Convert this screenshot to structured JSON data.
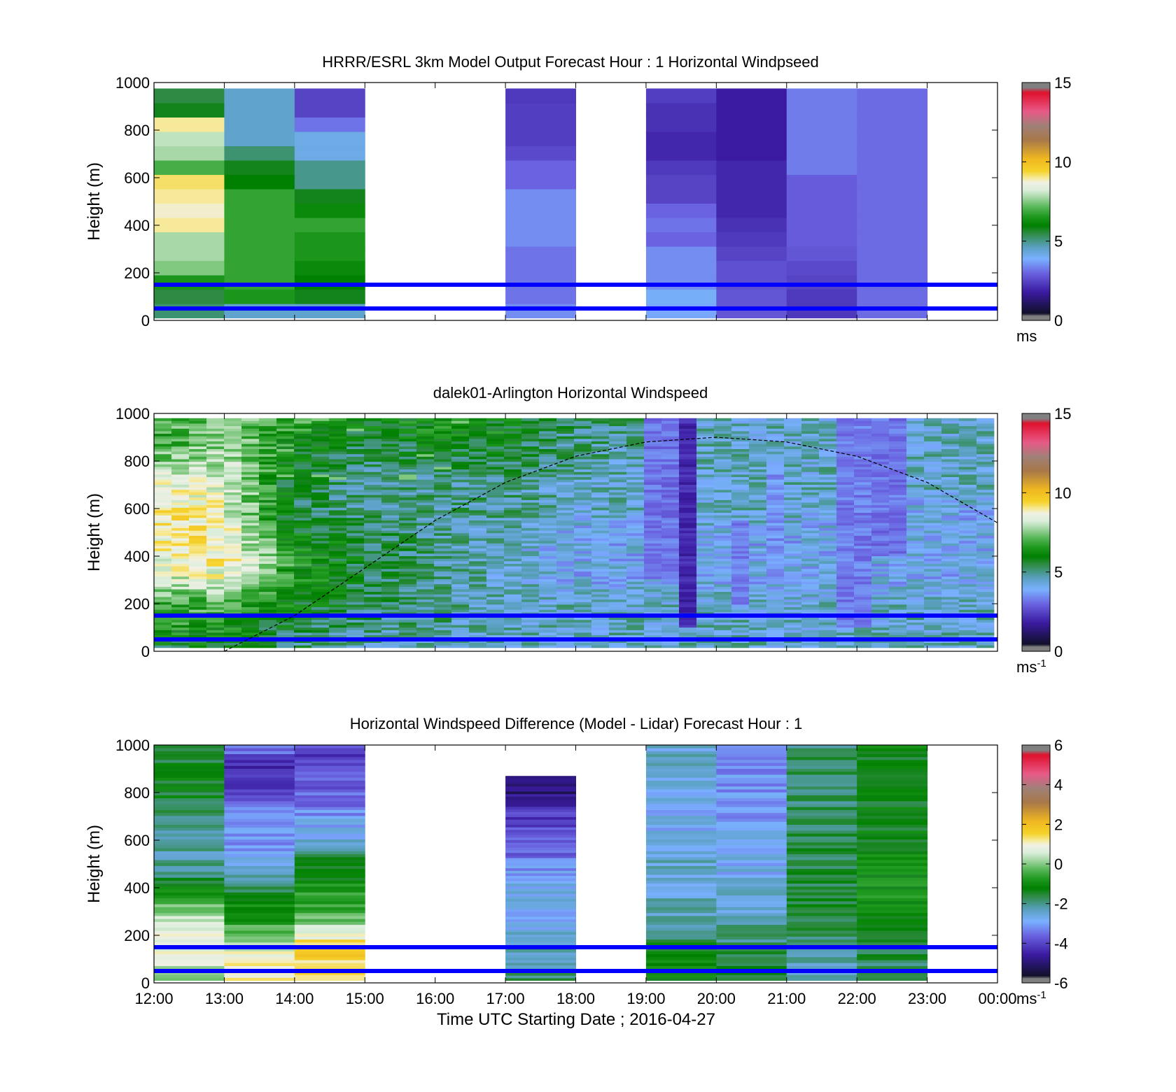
{
  "chart_data": [
    {
      "type": "heatmap",
      "title": "HRRR/ESRL 3km Model Output   Forecast Hour : 1 Horizontal Windpseed",
      "xlabel": "",
      "ylabel": "Height (m)",
      "ylim": [
        0,
        1000
      ],
      "yticks": [
        "0",
        "200",
        "400",
        "600",
        "800",
        "1000"
      ],
      "x_hours": [
        12,
        13,
        14,
        15,
        16,
        17,
        18,
        19,
        20,
        21,
        22,
        23,
        24
      ],
      "xticks_shown": false,
      "colorbar": {
        "ticks": [
          "0",
          "5",
          "10",
          "15"
        ],
        "min": 0,
        "max": 15,
        "unit": "ms"
      },
      "reference_lines_m": [
        50,
        150
      ],
      "column_hours": [
        12,
        13,
        14,
        15,
        16,
        17,
        18,
        19,
        20,
        21,
        22,
        23
      ],
      "column_values_ms": [
        [
          5.2,
          5.5,
          6.5,
          7.5,
          7.8,
          7.8,
          9.0,
          8.8,
          9.0,
          9.2,
          7.0,
          7.8,
          8.0,
          9.0,
          5.8,
          5.5
        ],
        [
          4.5,
          6.5,
          6.8,
          6.8,
          6.8,
          6.8,
          6.8,
          6.8,
          6.8,
          6.0,
          5.8,
          5.2,
          4.5,
          4.5,
          4.5,
          4.5
        ],
        [
          4.5,
          5.8,
          6.0,
          6.2,
          6.5,
          6.5,
          6.8,
          6.2,
          5.8,
          5.0,
          5.0,
          4.2,
          4.2,
          3.2,
          2.5,
          2.5
        ],
        null,
        null,
        [
          3.5,
          3.2,
          3.2,
          3.2,
          3.2,
          3.5,
          3.5,
          3.5,
          3.5,
          3.0,
          3.0,
          2.6,
          2.4,
          2.4,
          2.4,
          2.3
        ],
        null,
        [
          3.8,
          4.0,
          3.5,
          3.5,
          3.5,
          3.0,
          3.2,
          3.0,
          2.5,
          2.5,
          2.3,
          2.0,
          2.0,
          2.2,
          2.2,
          2.4
        ],
        [
          2.8,
          2.8,
          2.7,
          2.7,
          2.5,
          2.3,
          2.2,
          2.0,
          2.0,
          2.0,
          2.0,
          1.8,
          1.8,
          1.8,
          1.8,
          1.8
        ],
        [
          2.3,
          2.3,
          2.5,
          2.6,
          2.8,
          2.9,
          2.9,
          2.9,
          2.9,
          2.9,
          3.3,
          3.3,
          3.3,
          3.3,
          3.3,
          3.3
        ],
        [
          3.1,
          3.1,
          3.1,
          3.1,
          3.1,
          3.1,
          3.1,
          3.1,
          3.1,
          3.1,
          3.1,
          3.1,
          3.1,
          3.1,
          3.1,
          3.1
        ],
        null
      ]
    },
    {
      "type": "heatmap",
      "title": "dalek01-Arlington  Horizontal Windspeed",
      "xlabel": "",
      "ylabel": "Height (m)",
      "ylim": [
        0,
        1000
      ],
      "yticks": [
        "0",
        "200",
        "400",
        "600",
        "800",
        "1000"
      ],
      "x_hours": [
        12,
        13,
        14,
        15,
        16,
        17,
        18,
        19,
        20,
        21,
        22,
        23,
        24
      ],
      "xticks_shown": false,
      "colorbar": {
        "ticks": [
          "0",
          "5",
          "10",
          "15"
        ],
        "min": 0,
        "max": 15,
        "unit": "ms",
        "unit_exp": "-1"
      },
      "reference_lines_m": [
        50,
        150
      ],
      "data_range_hours": [
        12,
        23.95
      ],
      "columns_per_hour": 4,
      "anchor_profiles_ms": [
        {
          "hour": 12.0,
          "values": [
            5.5,
            6.5,
            7.0,
            8.0,
            8.5,
            9.0,
            9.0,
            8.5,
            7.5,
            6.5,
            7.0
          ]
        },
        {
          "hour": 13.0,
          "values": [
            5.5,
            6.5,
            7.0,
            8.5,
            9.0,
            9.0,
            8.5,
            8.5,
            8.0,
            7.5,
            7.5
          ]
        },
        {
          "hour": 14.0,
          "values": [
            5.0,
            5.5,
            6.0,
            6.5,
            6.5,
            6.0,
            5.5,
            5.5,
            6.0,
            6.5,
            7.0
          ]
        },
        {
          "hour": 15.0,
          "values": [
            4.5,
            5.0,
            5.5,
            5.5,
            5.5,
            5.5,
            5.0,
            5.0,
            5.0,
            5.5,
            6.0
          ]
        },
        {
          "hour": 16.0,
          "values": [
            4.5,
            5.0,
            5.0,
            5.0,
            5.0,
            5.0,
            5.0,
            5.0,
            5.5,
            6.0,
            6.5
          ]
        },
        {
          "hour": 17.0,
          "values": [
            4.5,
            4.5,
            4.5,
            4.5,
            4.5,
            4.5,
            5.0,
            5.0,
            5.5,
            6.0,
            6.0
          ]
        },
        {
          "hour": 18.0,
          "values": [
            4.5,
            4.5,
            4.5,
            4.0,
            4.0,
            4.0,
            4.5,
            4.5,
            5.0,
            5.0,
            5.5
          ]
        },
        {
          "hour": 19.0,
          "values": [
            4.5,
            4.5,
            4.5,
            4.0,
            4.0,
            4.0,
            4.5,
            4.5,
            4.5,
            5.0,
            5.0
          ]
        },
        {
          "hour": 20.0,
          "values": [
            4.5,
            4.5,
            4.5,
            4.0,
            4.0,
            4.0,
            4.5,
            4.5,
            4.5,
            4.5,
            4.5
          ]
        },
        {
          "hour": 21.0,
          "values": [
            4.5,
            4.5,
            4.5,
            4.0,
            4.0,
            4.0,
            4.5,
            4.5,
            4.5,
            4.5,
            4.5
          ]
        },
        {
          "hour": 22.0,
          "values": [
            4.5,
            4.5,
            4.5,
            4.0,
            4.0,
            4.0,
            4.0,
            4.5,
            4.5,
            4.5,
            4.5
          ]
        },
        {
          "hour": 23.0,
          "values": [
            4.5,
            4.5,
            4.5,
            4.0,
            4.0,
            4.0,
            4.0,
            4.5,
            4.5,
            4.5,
            4.5
          ]
        },
        {
          "hour": 23.95,
          "values": [
            4.5,
            4.5,
            4.5,
            4.0,
            4.0,
            4.0,
            4.0,
            4.5,
            4.5,
            4.5,
            4.5
          ]
        }
      ],
      "low_speed_streaks": [
        {
          "hour": 19.72,
          "height_range_m": [
            100,
            1000
          ],
          "value_ms": 2.0
        },
        {
          "hour": 19.25,
          "height_range_m": [
            300,
            1000
          ],
          "value_ms": 3.2
        },
        {
          "hour": 20.4,
          "height_range_m": [
            200,
            550
          ],
          "value_ms": 3.4
        },
        {
          "hour": 20.95,
          "height_range_m": [
            300,
            800
          ],
          "value_ms": 3.5
        },
        {
          "hour": 22.0,
          "height_range_m": [
            100,
            1000
          ],
          "value_ms": 3.3
        },
        {
          "hour": 22.5,
          "height_range_m": [
            400,
            1000
          ],
          "value_ms": 3.2
        }
      ],
      "boundary_layer_curve_m": [
        {
          "hour": 13.0,
          "value": 0
        },
        {
          "hour": 14.0,
          "value": 150
        },
        {
          "hour": 15.0,
          "value": 350
        },
        {
          "hour": 16.0,
          "value": 550
        },
        {
          "hour": 17.0,
          "value": 710
        },
        {
          "hour": 18.0,
          "value": 820
        },
        {
          "hour": 19.0,
          "value": 880
        },
        {
          "hour": 20.0,
          "value": 900
        },
        {
          "hour": 21.0,
          "value": 880
        },
        {
          "hour": 22.0,
          "value": 820
        },
        {
          "hour": 23.0,
          "value": 710
        },
        {
          "hour": 24.0,
          "value": 540
        }
      ]
    },
    {
      "type": "heatmap",
      "title": "Horizontal Windspeed Difference (Model - Lidar) Forecast Hour : 1",
      "xlabel": "Time UTC  Starting Date ; 2016-04-27",
      "ylabel": "Height (m)",
      "ylim": [
        0,
        1000
      ],
      "yticks": [
        "0",
        "200",
        "400",
        "600",
        "800",
        "1000"
      ],
      "x_hours": [
        12,
        13,
        14,
        15,
        16,
        17,
        18,
        19,
        20,
        21,
        22,
        23,
        24
      ],
      "xticks": [
        "12:00",
        "13:00",
        "14:00",
        "15:00",
        "16:00",
        "17:00",
        "18:00",
        "19:00",
        "20:00",
        "21:00",
        "22:00",
        "23:00",
        "00:00"
      ],
      "colorbar": {
        "ticks": [
          "-6",
          "-4",
          "-2",
          "0",
          "2",
          "4",
          "6"
        ],
        "min": -6,
        "max": 6,
        "unit": "ms",
        "unit_exp": "-1"
      },
      "reference_lines_m": [
        50,
        150
      ],
      "column_hours": [
        12,
        13,
        14,
        15,
        16,
        17,
        18,
        19,
        20,
        21,
        22,
        23
      ],
      "column_tops_m": [
        1000,
        1000,
        1000,
        null,
        null,
        870,
        null,
        1000,
        1000,
        1000,
        1000,
        1000
      ],
      "column_anchor_values": [
        [
          -0.5,
          0.8,
          0.8,
          0.5,
          0.0,
          -1.0,
          -2.0,
          -2.2,
          -2.2,
          -2.0,
          -1.5,
          -1.3,
          -1.5,
          -1.5
        ],
        [
          1.0,
          1.0,
          0.5,
          -0.5,
          -1.0,
          -1.5,
          -2.5,
          -3.0,
          -3.0,
          -3.0,
          -4.0,
          -4.0,
          -4.5,
          -3.0
        ],
        [
          1.5,
          1.5,
          1.5,
          0.3,
          -0.5,
          -0.8,
          -1.2,
          -1.5,
          -2.8,
          -3.0,
          -3.5,
          -3.8,
          -4.0,
          -4.0
        ],
        null,
        null,
        [
          -1.8,
          -2.0,
          -2.2,
          -2.5,
          -2.8,
          -2.8,
          -2.8,
          -3.0,
          -3.5,
          -3.8,
          -4.0,
          -4.2,
          -5.0,
          -4.5
        ],
        null,
        [
          -1.0,
          -1.0,
          -1.5,
          -2.0,
          -2.3,
          -2.5,
          -2.5,
          -2.5,
          -2.8,
          -2.8,
          -2.8,
          -2.5,
          -2.5,
          -2.5
        ],
        [
          -1.5,
          -1.5,
          -1.8,
          -2.0,
          -2.5,
          -2.5,
          -2.8,
          -2.8,
          -2.8,
          -3.0,
          -3.0,
          -3.2,
          -3.2,
          -3.0
        ],
        [
          -2.3,
          -2.2,
          -2.0,
          -1.8,
          -1.5,
          -1.5,
          -1.5,
          -1.6,
          -1.7,
          -1.7,
          -1.8,
          -1.8,
          -1.8,
          -1.8
        ],
        [
          -2.0,
          -1.8,
          -1.5,
          -1.2,
          -1.0,
          -1.0,
          -1.0,
          -1.2,
          -1.3,
          -1.3,
          -1.4,
          -1.3,
          -1.2,
          -1.3
        ],
        null
      ]
    }
  ]
}
